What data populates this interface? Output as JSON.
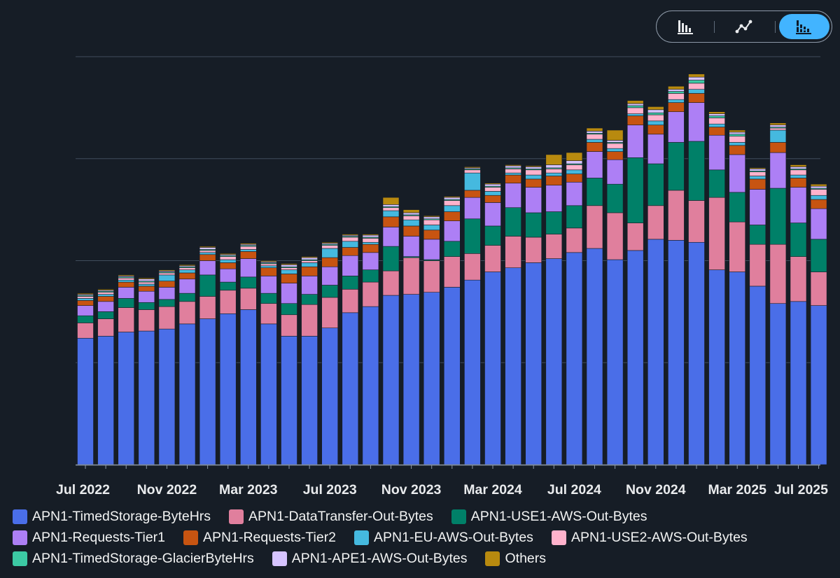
{
  "view_toggle": {
    "buttons": [
      {
        "name": "bar-chart-view",
        "icon": "bar-chart-icon",
        "active": false
      },
      {
        "name": "line-chart-view",
        "icon": "line-chart-icon",
        "active": false
      },
      {
        "name": "stacked-bar-view",
        "icon": "stacked-bar-icon",
        "active": true
      }
    ]
  },
  "chart_data": {
    "type": "bar",
    "stacked": true,
    "title": "",
    "xlabel": "",
    "ylabel": "",
    "ylim": [
      0,
      4
    ],
    "grid": true,
    "y_tick_labels_shown": false,
    "x_tick_labels": [
      "Jul 2022",
      "Nov 2022",
      "Mar 2023",
      "Jul 2023",
      "Nov 2023",
      "Mar 2024",
      "Jul 2024",
      "Nov 2024",
      "Mar 2025",
      "Jul 2025"
    ],
    "categories": [
      "2022-07",
      "2022-08",
      "2022-09",
      "2022-10",
      "2022-11",
      "2022-12",
      "2023-01",
      "2023-02",
      "2023-03",
      "2023-04",
      "2023-05",
      "2023-06",
      "2023-07",
      "2023-08",
      "2023-09",
      "2023-10",
      "2023-11",
      "2023-12",
      "2024-01",
      "2024-02",
      "2024-03",
      "2024-04",
      "2024-05",
      "2024-06",
      "2024-07",
      "2024-08",
      "2024-09",
      "2024-10",
      "2024-11",
      "2024-12",
      "2025-01",
      "2025-02",
      "2025-03",
      "2025-04",
      "2025-05",
      "2025-06",
      "2025-07"
    ],
    "legend_position": "bottom",
    "series": [
      {
        "name": "APN1-TimedStorage-ByteHrs",
        "color": "#4a6ee8",
        "values": [
          1.24,
          1.26,
          1.3,
          1.31,
          1.33,
          1.38,
          1.43,
          1.48,
          1.52,
          1.38,
          1.26,
          1.26,
          1.34,
          1.49,
          1.55,
          1.66,
          1.67,
          1.69,
          1.74,
          1.81,
          1.89,
          1.93,
          1.98,
          2.02,
          2.08,
          2.12,
          2.01,
          2.1,
          2.21,
          2.2,
          2.18,
          1.91,
          1.89,
          1.75,
          1.58,
          1.6,
          1.56
        ]
      },
      {
        "name": "APN1-DataTransfer-Out-Bytes",
        "color": "#e07f9d",
        "values": [
          0.15,
          0.17,
          0.24,
          0.21,
          0.22,
          0.22,
          0.22,
          0.23,
          0.21,
          0.2,
          0.21,
          0.31,
          0.3,
          0.23,
          0.24,
          0.24,
          0.36,
          0.31,
          0.3,
          0.26,
          0.26,
          0.31,
          0.25,
          0.24,
          0.24,
          0.42,
          0.46,
          0.27,
          0.33,
          0.49,
          0.41,
          0.71,
          0.49,
          0.41,
          0.58,
          0.44,
          0.33
        ]
      },
      {
        "name": "APN1-USE1-AWS-Out-Bytes",
        "color": "#008068",
        "values": [
          0.07,
          0.07,
          0.09,
          0.07,
          0.07,
          0.08,
          0.21,
          0.08,
          0.11,
          0.1,
          0.11,
          0.1,
          0.12,
          0.13,
          0.12,
          0.24,
          0.01,
          0.01,
          0.15,
          0.34,
          0.19,
          0.28,
          0.24,
          0.22,
          0.22,
          0.27,
          0.28,
          0.64,
          0.41,
          0.47,
          0.58,
          0.27,
          0.29,
          0.19,
          0.55,
          0.33,
          0.32
        ]
      },
      {
        "name": "APN1-Requests-Tier1",
        "color": "#ad7ff5",
        "values": [
          0.1,
          0.1,
          0.11,
          0.11,
          0.12,
          0.14,
          0.14,
          0.13,
          0.18,
          0.17,
          0.2,
          0.18,
          0.18,
          0.2,
          0.17,
          0.19,
          0.2,
          0.2,
          0.2,
          0.21,
          0.23,
          0.24,
          0.25,
          0.26,
          0.23,
          0.26,
          0.24,
          0.32,
          0.29,
          0.3,
          0.38,
          0.34,
          0.37,
          0.35,
          0.35,
          0.35,
          0.3
        ]
      },
      {
        "name": "APN1-Requests-Tier2",
        "color": "#c75411",
        "values": [
          0.05,
          0.05,
          0.05,
          0.05,
          0.06,
          0.06,
          0.06,
          0.06,
          0.07,
          0.08,
          0.09,
          0.09,
          0.09,
          0.08,
          0.08,
          0.1,
          0.1,
          0.09,
          0.09,
          0.07,
          0.07,
          0.08,
          0.08,
          0.09,
          0.08,
          0.09,
          0.08,
          0.09,
          0.09,
          0.09,
          0.09,
          0.08,
          0.09,
          0.1,
          0.1,
          0.09,
          0.09
        ]
      },
      {
        "name": "APN1-EU-AWS-Out-Bytes",
        "color": "#45b9df",
        "values": [
          0.02,
          0.02,
          0.02,
          0.02,
          0.06,
          0.03,
          0.02,
          0.03,
          0.02,
          0.02,
          0.04,
          0.04,
          0.09,
          0.06,
          0.02,
          0.06,
          0.06,
          0.05,
          0.06,
          0.17,
          0.04,
          0.02,
          0.04,
          0.03,
          0.04,
          0.03,
          0.03,
          0.02,
          0.04,
          0.03,
          0.04,
          0.03,
          0.03,
          0.03,
          0.12,
          0.03,
          0.04
        ]
      },
      {
        "name": "APN1-USE2-AWS-Out-Bytes",
        "color": "#ffb2cc",
        "values": [
          0.02,
          0.02,
          0.02,
          0.02,
          0.02,
          0.02,
          0.02,
          0.03,
          0.03,
          0.02,
          0.02,
          0.02,
          0.03,
          0.04,
          0.04,
          0.03,
          0.04,
          0.05,
          0.05,
          0.03,
          0.04,
          0.04,
          0.05,
          0.04,
          0.05,
          0.05,
          0.05,
          0.06,
          0.06,
          0.06,
          0.06,
          0.06,
          0.06,
          0.04,
          0.02,
          0.05,
          0.06
        ]
      },
      {
        "name": "APN1-TimedStorage-GlacierByteHrs",
        "color": "#3cc9a4",
        "values": [
          0.01,
          0.01,
          0.01,
          0.01,
          0.01,
          0.01,
          0.01,
          0.01,
          0.01,
          0.01,
          0.01,
          0.01,
          0.01,
          0.01,
          0.01,
          0.01,
          0.01,
          0.01,
          0.01,
          0.01,
          0.01,
          0.01,
          0.01,
          0.01,
          0.01,
          0.01,
          0.01,
          0.02,
          0.02,
          0.02,
          0.03,
          0.02,
          0.02,
          0.01,
          0.01,
          0.01,
          0.01
        ]
      },
      {
        "name": "APN1-APE1-AWS-Out-Bytes",
        "color": "#d6c4ff",
        "values": [
          0.01,
          0.01,
          0.01,
          0.02,
          0.01,
          0.01,
          0.02,
          0.01,
          0.01,
          0.01,
          0.02,
          0.02,
          0.01,
          0.01,
          0.02,
          0.02,
          0.02,
          0.02,
          0.02,
          0.01,
          0.02,
          0.02,
          0.02,
          0.03,
          0.03,
          0.02,
          0.02,
          0.02,
          0.03,
          0.02,
          0.03,
          0.02,
          0.02,
          0.02,
          0.02,
          0.02,
          0.02
        ]
      },
      {
        "name": "Others",
        "color": "#b88a0f",
        "values": [
          0.01,
          0.01,
          0.01,
          0.01,
          0.01,
          0.01,
          0.01,
          0.01,
          0.01,
          0.01,
          0.01,
          0.01,
          0.01,
          0.01,
          0.01,
          0.07,
          0.03,
          0.01,
          0.01,
          0.01,
          0.01,
          0.01,
          0.01,
          0.1,
          0.08,
          0.03,
          0.1,
          0.03,
          0.03,
          0.03,
          0.03,
          0.02,
          0.02,
          0.01,
          0.02,
          0.02,
          0.02
        ]
      }
    ]
  }
}
